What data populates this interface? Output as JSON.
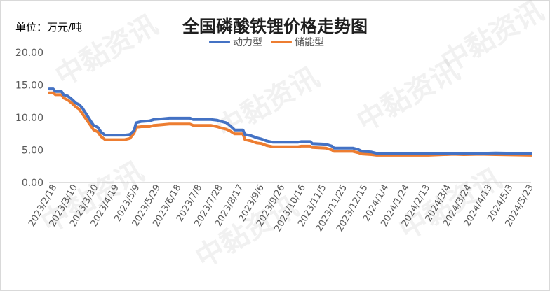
{
  "unit_label": "单位：万元/吨",
  "watermark": "中黏资讯",
  "chart_data": {
    "type": "line",
    "title": "全国磷酸铁锂价格走势图",
    "ylim": [
      0,
      20
    ],
    "y_ticks": [
      "0.00",
      "5.00",
      "10.00",
      "15.00",
      "20.00"
    ],
    "x_ticks": [
      "2023/2/18",
      "2023/3/10",
      "2023/3/30",
      "2023/4/19",
      "2023/5/9",
      "2023/5/29",
      "2023/6/18",
      "2023/7/8",
      "2023/7/28",
      "2023/8/17",
      "2023/9/6",
      "2023/9/26",
      "2023/10/16",
      "2023/11/5",
      "2023/11/25",
      "2023/12/15",
      "2024/1/4",
      "2024/1/24",
      "2024/2/13",
      "2024/3/4",
      "2024/3/24",
      "2024/4/13",
      "2024/5/3",
      "2024/5/23"
    ],
    "x_start": "2023-02-14",
    "x_end": "2024-05-24",
    "legend_position": "top-center",
    "grid": false,
    "series": [
      {
        "name": "动力型",
        "color": "#4472c4",
        "points": [
          [
            "2023-02-14",
            14.4
          ],
          [
            "2023-02-18",
            14.4
          ],
          [
            "2023-02-20",
            14.0
          ],
          [
            "2023-02-26",
            14.0
          ],
          [
            "2023-02-28",
            13.5
          ],
          [
            "2023-03-04",
            13.3
          ],
          [
            "2023-03-08",
            12.8
          ],
          [
            "2023-03-12",
            12.2
          ],
          [
            "2023-03-15",
            12.0
          ],
          [
            "2023-03-18",
            11.5
          ],
          [
            "2023-03-22",
            10.5
          ],
          [
            "2023-03-26",
            9.5
          ],
          [
            "2023-03-29",
            8.8
          ],
          [
            "2023-04-02",
            8.5
          ],
          [
            "2023-04-05",
            7.8
          ],
          [
            "2023-04-09",
            7.3
          ],
          [
            "2023-04-28",
            7.3
          ],
          [
            "2023-05-03",
            7.4
          ],
          [
            "2023-05-07",
            8.0
          ],
          [
            "2023-05-09",
            9.2
          ],
          [
            "2023-05-14",
            9.4
          ],
          [
            "2023-05-22",
            9.5
          ],
          [
            "2023-05-26",
            9.7
          ],
          [
            "2023-06-03",
            9.8
          ],
          [
            "2023-06-10",
            9.9
          ],
          [
            "2023-06-30",
            9.9
          ],
          [
            "2023-07-03",
            9.7
          ],
          [
            "2023-07-20",
            9.7
          ],
          [
            "2023-07-26",
            9.6
          ],
          [
            "2023-07-30",
            9.4
          ],
          [
            "2023-08-04",
            9.2
          ],
          [
            "2023-08-08",
            8.7
          ],
          [
            "2023-08-12",
            8.1
          ],
          [
            "2023-08-20",
            8.1
          ],
          [
            "2023-08-22",
            7.4
          ],
          [
            "2023-08-28",
            7.2
          ],
          [
            "2023-09-02",
            6.9
          ],
          [
            "2023-09-07",
            6.7
          ],
          [
            "2023-09-12",
            6.4
          ],
          [
            "2023-09-18",
            6.2
          ],
          [
            "2023-10-12",
            6.2
          ],
          [
            "2023-10-15",
            6.3
          ],
          [
            "2023-10-24",
            6.3
          ],
          [
            "2023-10-26",
            6.0
          ],
          [
            "2023-11-08",
            5.9
          ],
          [
            "2023-11-14",
            5.6
          ],
          [
            "2023-11-16",
            5.3
          ],
          [
            "2023-12-04",
            5.3
          ],
          [
            "2023-12-09",
            5.1
          ],
          [
            "2023-12-13",
            4.8
          ],
          [
            "2023-12-22",
            4.7
          ],
          [
            "2023-12-27",
            4.5
          ],
          [
            "2024-02-05",
            4.5
          ],
          [
            "2024-02-15",
            4.45
          ],
          [
            "2024-03-10",
            4.5
          ],
          [
            "2024-03-20",
            4.5
          ],
          [
            "2024-04-05",
            4.5
          ],
          [
            "2024-04-20",
            4.55
          ],
          [
            "2024-05-10",
            4.5
          ],
          [
            "2024-05-24",
            4.45
          ]
        ]
      },
      {
        "name": "储能型",
        "color": "#ed7d31",
        "points": [
          [
            "2023-02-14",
            13.8
          ],
          [
            "2023-02-18",
            13.8
          ],
          [
            "2023-02-20",
            13.5
          ],
          [
            "2023-02-26",
            13.5
          ],
          [
            "2023-02-28",
            13.0
          ],
          [
            "2023-03-04",
            12.7
          ],
          [
            "2023-03-08",
            12.2
          ],
          [
            "2023-03-12",
            11.6
          ],
          [
            "2023-03-15",
            11.3
          ],
          [
            "2023-03-18",
            10.6
          ],
          [
            "2023-03-22",
            9.7
          ],
          [
            "2023-03-26",
            8.8
          ],
          [
            "2023-03-29",
            8.1
          ],
          [
            "2023-04-02",
            7.8
          ],
          [
            "2023-04-05",
            7.1
          ],
          [
            "2023-04-09",
            6.6
          ],
          [
            "2023-04-28",
            6.6
          ],
          [
            "2023-05-03",
            6.8
          ],
          [
            "2023-05-07",
            7.6
          ],
          [
            "2023-05-09",
            8.5
          ],
          [
            "2023-05-14",
            8.6
          ],
          [
            "2023-05-22",
            8.6
          ],
          [
            "2023-05-26",
            8.8
          ],
          [
            "2023-06-03",
            8.9
          ],
          [
            "2023-06-10",
            9.0
          ],
          [
            "2023-06-30",
            9.0
          ],
          [
            "2023-07-03",
            8.8
          ],
          [
            "2023-07-20",
            8.8
          ],
          [
            "2023-07-26",
            8.6
          ],
          [
            "2023-07-30",
            8.4
          ],
          [
            "2023-08-04",
            8.2
          ],
          [
            "2023-08-08",
            7.9
          ],
          [
            "2023-08-12",
            7.5
          ],
          [
            "2023-08-20",
            7.5
          ],
          [
            "2023-08-22",
            6.6
          ],
          [
            "2023-08-28",
            6.4
          ],
          [
            "2023-09-02",
            6.1
          ],
          [
            "2023-09-07",
            6.0
          ],
          [
            "2023-09-12",
            5.7
          ],
          [
            "2023-09-18",
            5.5
          ],
          [
            "2023-10-12",
            5.5
          ],
          [
            "2023-10-15",
            5.6
          ],
          [
            "2023-10-24",
            5.6
          ],
          [
            "2023-10-26",
            5.4
          ],
          [
            "2023-11-08",
            5.3
          ],
          [
            "2023-11-14",
            5.0
          ],
          [
            "2023-11-16",
            4.8
          ],
          [
            "2023-12-04",
            4.8
          ],
          [
            "2023-12-09",
            4.6
          ],
          [
            "2023-12-13",
            4.4
          ],
          [
            "2023-12-22",
            4.3
          ],
          [
            "2023-12-27",
            4.2
          ],
          [
            "2024-02-05",
            4.2
          ],
          [
            "2024-02-15",
            4.2
          ],
          [
            "2024-03-10",
            4.35
          ],
          [
            "2024-03-20",
            4.3
          ],
          [
            "2024-04-05",
            4.35
          ],
          [
            "2024-04-20",
            4.3
          ],
          [
            "2024-05-10",
            4.25
          ],
          [
            "2024-05-24",
            4.2
          ]
        ]
      }
    ]
  }
}
